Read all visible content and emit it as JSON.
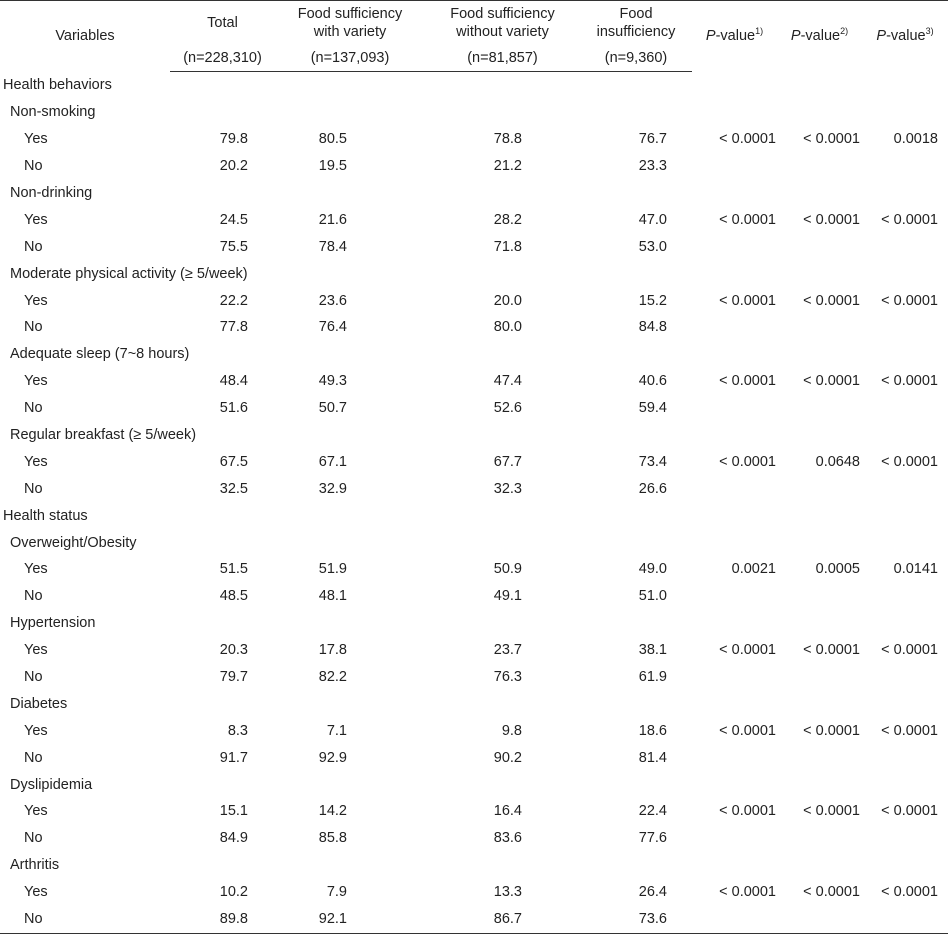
{
  "header": {
    "variables": "Variables",
    "total": "Total",
    "total_n": "(n=228,310)",
    "fsv_line1": "Food sufficiency",
    "fsv_line2": "with variety",
    "fsv_n": "(n=137,093)",
    "fsnv_line1": "Food sufficiency",
    "fsnv_line2": "without variety",
    "fsnv_n": "(n=81,857)",
    "fi_line1": "Food",
    "fi_line2": "insufficiency",
    "fi_n": "(n=9,360)",
    "p_label": "P",
    "p_suffix": "-value",
    "p1_sup": "1)",
    "p2_sup": "2)",
    "p3_sup": "3)"
  },
  "rows": [
    {
      "type": "section",
      "label": "Health behaviors"
    },
    {
      "type": "sub",
      "label": "Non-smoking"
    },
    {
      "type": "opt",
      "label": "Yes",
      "total": "79.8",
      "fsv": "80.5",
      "fsnv": "78.8",
      "fi": "76.7",
      "p1": "< 0.0001",
      "p2": "< 0.0001",
      "p3": "0.0018"
    },
    {
      "type": "opt",
      "label": "No",
      "total": "20.2",
      "fsv": "19.5",
      "fsnv": "21.2",
      "fi": "23.3",
      "p1": "",
      "p2": "",
      "p3": ""
    },
    {
      "type": "sub",
      "label": "Non-drinking"
    },
    {
      "type": "opt",
      "label": "Yes",
      "total": "24.5",
      "fsv": "21.6",
      "fsnv": "28.2",
      "fi": "47.0",
      "p1": "< 0.0001",
      "p2": "< 0.0001",
      "p3": "< 0.0001"
    },
    {
      "type": "opt",
      "label": "No",
      "total": "75.5",
      "fsv": "78.4",
      "fsnv": "71.8",
      "fi": "53.0",
      "p1": "",
      "p2": "",
      "p3": ""
    },
    {
      "type": "sub",
      "label": "Moderate physical activity (≥ 5/week)"
    },
    {
      "type": "opt",
      "label": "Yes",
      "total": "22.2",
      "fsv": "23.6",
      "fsnv": "20.0",
      "fi": "15.2",
      "p1": "< 0.0001",
      "p2": "< 0.0001",
      "p3": "< 0.0001"
    },
    {
      "type": "opt",
      "label": "No",
      "total": "77.8",
      "fsv": "76.4",
      "fsnv": "80.0",
      "fi": "84.8",
      "p1": "",
      "p2": "",
      "p3": ""
    },
    {
      "type": "sub",
      "label": "Adequate sleep (7~8 hours)"
    },
    {
      "type": "opt",
      "label": "Yes",
      "total": "48.4",
      "fsv": "49.3",
      "fsnv": "47.4",
      "fi": "40.6",
      "p1": "< 0.0001",
      "p2": "< 0.0001",
      "p3": "< 0.0001"
    },
    {
      "type": "opt",
      "label": "No",
      "total": "51.6",
      "fsv": "50.7",
      "fsnv": "52.6",
      "fi": "59.4",
      "p1": "",
      "p2": "",
      "p3": ""
    },
    {
      "type": "sub",
      "label": "Regular breakfast (≥ 5/week)"
    },
    {
      "type": "opt",
      "label": "Yes",
      "total": "67.5",
      "fsv": "67.1",
      "fsnv": "67.7",
      "fi": "73.4",
      "p1": "< 0.0001",
      "p2": "0.0648",
      "p3": "< 0.0001"
    },
    {
      "type": "opt",
      "label": "No",
      "total": "32.5",
      "fsv": "32.9",
      "fsnv": "32.3",
      "fi": "26.6",
      "p1": "",
      "p2": "",
      "p3": ""
    },
    {
      "type": "section",
      "label": "Health status"
    },
    {
      "type": "sub",
      "label": "Overweight/Obesity"
    },
    {
      "type": "opt",
      "label": "Yes",
      "total": "51.5",
      "fsv": "51.9",
      "fsnv": "50.9",
      "fi": "49.0",
      "p1": "0.0021",
      "p2": "0.0005",
      "p3": "0.0141"
    },
    {
      "type": "opt",
      "label": "No",
      "total": "48.5",
      "fsv": "48.1",
      "fsnv": "49.1",
      "fi": "51.0",
      "p1": "",
      "p2": "",
      "p3": ""
    },
    {
      "type": "sub",
      "label": "Hypertension"
    },
    {
      "type": "opt",
      "label": "Yes",
      "total": "20.3",
      "fsv": "17.8",
      "fsnv": "23.7",
      "fi": "38.1",
      "p1": "< 0.0001",
      "p2": "< 0.0001",
      "p3": "< 0.0001"
    },
    {
      "type": "opt",
      "label": "No",
      "total": "79.7",
      "fsv": "82.2",
      "fsnv": "76.3",
      "fi": "61.9",
      "p1": "",
      "p2": "",
      "p3": ""
    },
    {
      "type": "sub",
      "label": "Diabetes"
    },
    {
      "type": "opt",
      "label": "Yes",
      "total": "8.3",
      "fsv": "7.1",
      "fsnv": "9.8",
      "fi": "18.6",
      "p1": "< 0.0001",
      "p2": "< 0.0001",
      "p3": "< 0.0001"
    },
    {
      "type": "opt",
      "label": "No",
      "total": "91.7",
      "fsv": "92.9",
      "fsnv": "90.2",
      "fi": "81.4",
      "p1": "",
      "p2": "",
      "p3": ""
    },
    {
      "type": "sub",
      "label": "Dyslipidemia"
    },
    {
      "type": "opt",
      "label": "Yes",
      "total": "15.1",
      "fsv": "14.2",
      "fsnv": "16.4",
      "fi": "22.4",
      "p1": "< 0.0001",
      "p2": "< 0.0001",
      "p3": "< 0.0001"
    },
    {
      "type": "opt",
      "label": "No",
      "total": "84.9",
      "fsv": "85.8",
      "fsnv": "83.6",
      "fi": "77.6",
      "p1": "",
      "p2": "",
      "p3": ""
    },
    {
      "type": "sub",
      "label": "Arthritis"
    },
    {
      "type": "opt",
      "label": "Yes",
      "total": "10.2",
      "fsv": "7.9",
      "fsnv": "13.3",
      "fi": "26.4",
      "p1": "< 0.0001",
      "p2": "< 0.0001",
      "p3": "< 0.0001"
    },
    {
      "type": "opt",
      "label": "No",
      "total": "89.8",
      "fsv": "92.1",
      "fsnv": "86.7",
      "fi": "73.6",
      "p1": "",
      "p2": "",
      "p3": ""
    }
  ]
}
